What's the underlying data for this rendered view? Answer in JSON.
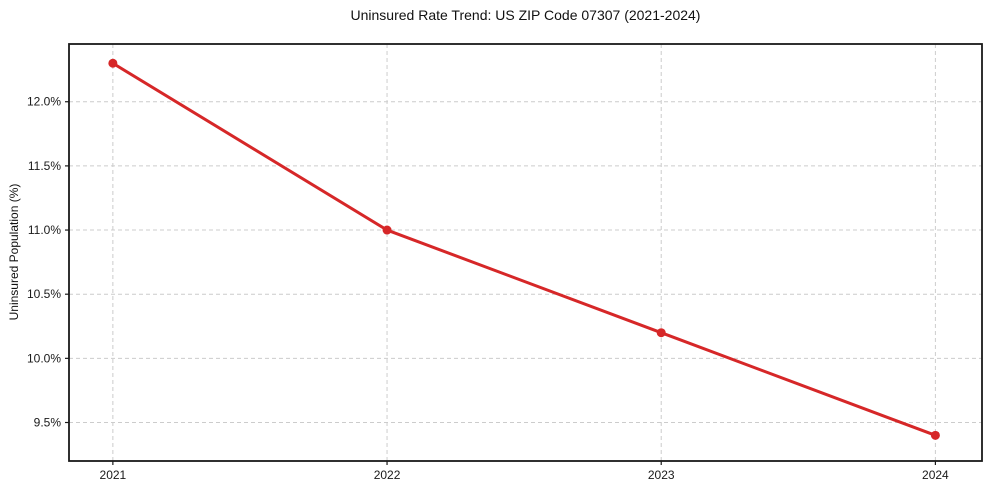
{
  "chart_data": {
    "type": "line",
    "title": "Uninsured Rate Trend: US ZIP Code 07307 (2021-2024)",
    "xlabel": "",
    "ylabel": "Uninsured Population (%)",
    "x": [
      2021,
      2022,
      2023,
      2024
    ],
    "values": [
      12.3,
      11.0,
      10.2,
      9.4
    ],
    "x_tick_labels": [
      "2021",
      "2022",
      "2023",
      "2024"
    ],
    "y_ticks": [
      9.5,
      10.0,
      10.5,
      11.0,
      11.5,
      12.0
    ],
    "y_tick_suffix": "%",
    "xlim": [
      2020.84,
      2024.17
    ],
    "ylim": [
      9.2,
      12.45
    ],
    "grid": true,
    "grid_style": "dashed",
    "legend": "none",
    "line_color": "#d62728",
    "marker": "circle",
    "background_color": "#ffffff"
  }
}
